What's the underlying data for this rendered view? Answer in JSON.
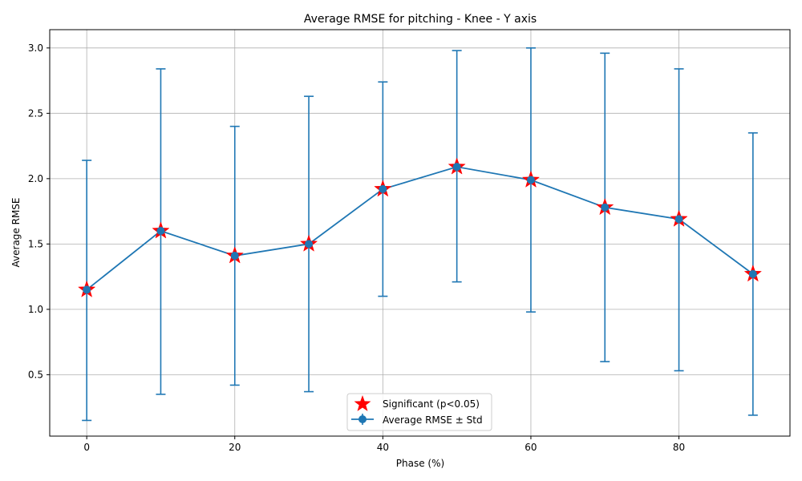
{
  "chart_data": {
    "type": "line",
    "title": "Average RMSE for pitching - Knee - Y axis",
    "xlabel": "Phase (%)",
    "ylabel": "Average RMSE",
    "xlim": [
      -5,
      95
    ],
    "ylim": [
      0.03,
      3.14
    ],
    "xticks": [
      0,
      20,
      40,
      60,
      80
    ],
    "yticks": [
      0.5,
      1.0,
      1.5,
      2.0,
      2.5,
      3.0
    ],
    "xtick_labels": [
      "0",
      "20",
      "40",
      "60",
      "80"
    ],
    "ytick_labels": [
      "0.5",
      "1.0",
      "1.5",
      "2.0",
      "2.5",
      "3.0"
    ],
    "grid": true,
    "legend_position": "lower-center",
    "series": [
      {
        "name": "Average RMSE ± Std",
        "x": [
          0,
          10,
          20,
          30,
          40,
          50,
          60,
          70,
          80,
          90
        ],
        "y": [
          1.15,
          1.6,
          1.41,
          1.5,
          1.92,
          2.09,
          1.99,
          1.78,
          1.69,
          1.27
        ],
        "err_low": [
          0.15,
          0.35,
          0.42,
          0.37,
          1.1,
          1.21,
          0.98,
          0.6,
          0.53,
          0.19
        ],
        "err_high": [
          2.14,
          2.84,
          2.4,
          2.63,
          2.74,
          2.98,
          3.0,
          2.96,
          2.84,
          2.35
        ],
        "color": "#1f77b4"
      }
    ],
    "significant": {
      "name": "Significant (p<0.05)",
      "x": [
        0,
        10,
        20,
        30,
        40,
        50,
        60,
        70,
        80,
        90
      ],
      "y": [
        1.15,
        1.6,
        1.41,
        1.5,
        1.92,
        2.09,
        1.99,
        1.78,
        1.69,
        1.27
      ],
      "color": "#ff0000"
    }
  }
}
